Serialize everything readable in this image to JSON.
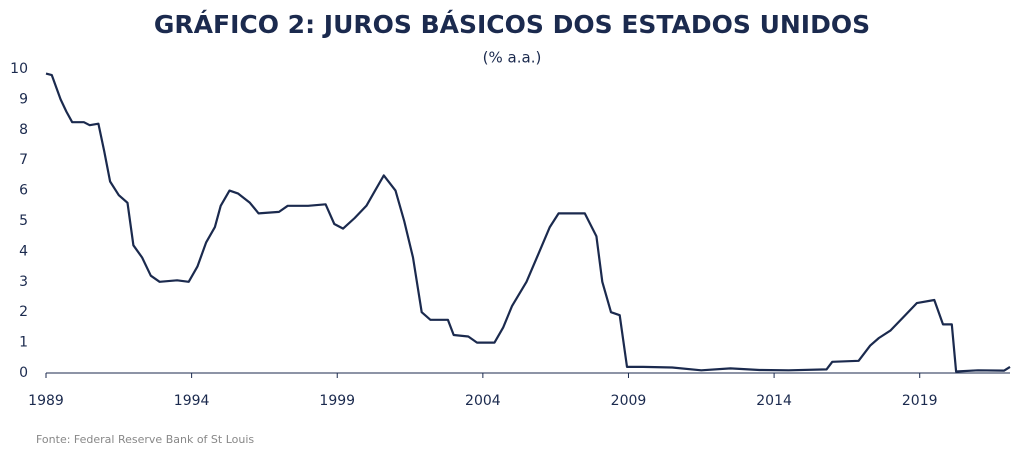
{
  "chart_data": {
    "type": "line",
    "title": "GRÁFICO 2: JUROS BÁSICOS DOS ESTADOS UNIDOS",
    "subtitle": "(% a.a.)",
    "source": "Fonte: Federal Reserve Bank of St Louis",
    "x": [
      1989.0,
      1989.2,
      1989.5,
      1989.7,
      1989.9,
      1990.3,
      1990.5,
      1990.8,
      1991.0,
      1991.2,
      1991.5,
      1991.8,
      1992.0,
      1992.3,
      1992.6,
      1992.9,
      1993.5,
      1993.9,
      1994.2,
      1994.5,
      1994.8,
      1995.0,
      1995.3,
      1995.6,
      1996.0,
      1996.3,
      1997.0,
      1997.3,
      1998.0,
      1998.6,
      1998.9,
      1999.2,
      1999.6,
      2000.0,
      2000.3,
      2000.6,
      2001.0,
      2001.3,
      2001.6,
      2001.9,
      2002.2,
      2002.8,
      2003.0,
      2003.5,
      2003.8,
      2004.4,
      2004.7,
      2005.0,
      2005.5,
      2005.9,
      2006.3,
      2006.6,
      2007.5,
      2007.9,
      2008.1,
      2008.4,
      2008.7,
      2008.95,
      2009.5,
      2010.5,
      2011.5,
      2012.5,
      2013.5,
      2014.5,
      2015.8,
      2016.0,
      2016.9,
      2017.3,
      2017.6,
      2018.0,
      2018.5,
      2018.9,
      2019.5,
      2019.8,
      2020.1,
      2020.25,
      2021.0,
      2021.9,
      2022.1
    ],
    "series": [
      {
        "color": "#1b2a4e",
        "values": [
          9.85,
          9.8,
          9.0,
          8.6,
          8.25,
          8.25,
          8.15,
          8.2,
          7.3,
          6.3,
          5.85,
          5.6,
          4.2,
          3.8,
          3.2,
          3.0,
          3.05,
          3.0,
          3.5,
          4.3,
          4.8,
          5.5,
          6.0,
          5.9,
          5.6,
          5.25,
          5.3,
          5.5,
          5.5,
          5.55,
          4.9,
          4.75,
          5.1,
          5.5,
          6.0,
          6.5,
          6.0,
          5.0,
          3.8,
          2.0,
          1.75,
          1.75,
          1.25,
          1.2,
          1.0,
          1.0,
          1.5,
          2.2,
          3.0,
          3.9,
          4.8,
          5.25,
          5.25,
          4.5,
          3.0,
          2.0,
          1.9,
          0.2,
          0.2,
          0.18,
          0.09,
          0.15,
          0.1,
          0.09,
          0.12,
          0.37,
          0.4,
          0.9,
          1.15,
          1.4,
          1.9,
          2.3,
          2.4,
          1.6,
          1.6,
          0.05,
          0.09,
          0.08,
          0.2
        ]
      }
    ],
    "xlim": [
      1989,
      2022.1
    ],
    "xticks": [
      1989,
      1994,
      1999,
      2004,
      2009,
      2014,
      2019
    ],
    "ylim": [
      0,
      10
    ],
    "yticks": [
      0,
      1,
      2,
      3,
      4,
      5,
      6,
      7,
      8,
      9,
      10
    ]
  }
}
